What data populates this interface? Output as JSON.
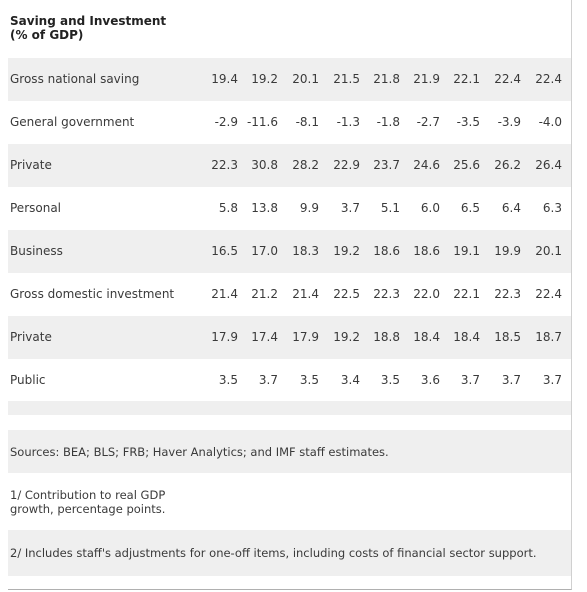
{
  "title": "Saving and Investment (% of GDP)",
  "rows": [
    {
      "label": "Gross national saving",
      "values": [
        "19.4",
        "19.2",
        "20.1",
        "21.5",
        "21.8",
        "21.9",
        "22.1",
        "22.4",
        "22.4"
      ]
    },
    {
      "label": "General government",
      "values": [
        "-2.9",
        "-11.6",
        "-8.1",
        "-1.3",
        "-1.8",
        "-2.7",
        "-3.5",
        "-3.9",
        "-4.0"
      ]
    },
    {
      "label": "Private",
      "values": [
        "22.3",
        "30.8",
        "28.2",
        "22.9",
        "23.7",
        "24.6",
        "25.6",
        "26.2",
        "26.4"
      ]
    },
    {
      "label": "Personal",
      "values": [
        "5.8",
        "13.8",
        "9.9",
        "3.7",
        "5.1",
        "6.0",
        "6.5",
        "6.4",
        "6.3"
      ]
    },
    {
      "label": "Business",
      "values": [
        "16.5",
        "17.0",
        "18.3",
        "19.2",
        "18.6",
        "18.6",
        "19.1",
        "19.9",
        "20.1"
      ]
    },
    {
      "label": "Gross domestic investment",
      "values": [
        "21.4",
        "21.2",
        "21.4",
        "22.5",
        "22.3",
        "22.0",
        "22.1",
        "22.3",
        "22.4"
      ]
    },
    {
      "label": "Private",
      "values": [
        "17.9",
        "17.4",
        "17.9",
        "19.2",
        "18.8",
        "18.4",
        "18.4",
        "18.5",
        "18.7"
      ]
    },
    {
      "label": "Public",
      "values": [
        "3.5",
        "3.7",
        "3.5",
        "3.4",
        "3.5",
        "3.6",
        "3.7",
        "3.7",
        "3.7"
      ]
    }
  ],
  "notes": {
    "sources": "Sources: BEA; BLS; FRB; Haver Analytics; and IMF staff estimates.",
    "note1": "1/ Contribution to real GDP growth, percentage points.",
    "note2": "2/ Includes staff's adjustments for one-off items, including costs of financial sector support."
  }
}
